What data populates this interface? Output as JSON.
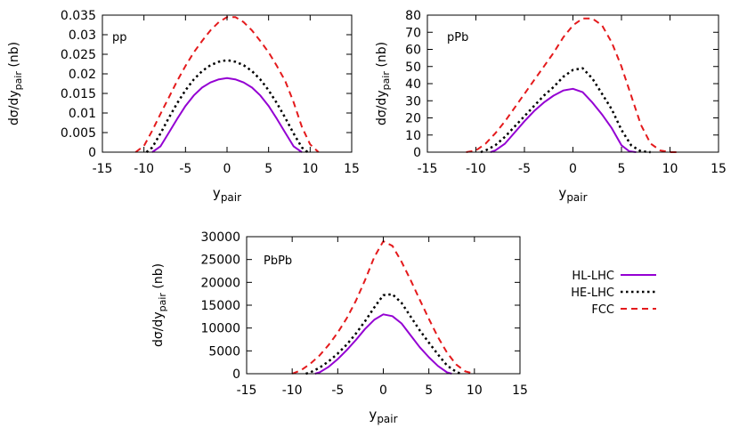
{
  "chart_data": [
    {
      "type": "line",
      "panel_label": "pp",
      "xlabel_main": "y",
      "xlabel_sub": "pair",
      "ylabel_pre": "dσ/dy",
      "ylabel_sub": "pair",
      "ylabel_post": " (nb)",
      "xlim": [
        -15,
        15
      ],
      "ylim": [
        0,
        0.035
      ],
      "xticks": [
        -15,
        -10,
        -5,
        0,
        5,
        10,
        15
      ],
      "xtick_labels": [
        "-15",
        "-10",
        "-5",
        "0",
        "5",
        "10",
        "15"
      ],
      "yticks": [
        0,
        0.005,
        0.01,
        0.015,
        0.02,
        0.025,
        0.03,
        0.035
      ],
      "ytick_labels": [
        "0",
        "0.005",
        "0.01",
        "0.015",
        "0.02",
        "0.025",
        "0.03",
        "0.035"
      ],
      "series": [
        {
          "name": "HL-LHC",
          "x": [
            -9.0,
            -8.0,
            -7.0,
            -6.0,
            -5.0,
            -4.0,
            -3.0,
            -2.0,
            -1.0,
            0.0,
            1.0,
            2.0,
            3.0,
            4.0,
            5.0,
            6.0,
            7.0,
            8.0,
            9.0
          ],
          "y": [
            0.0,
            0.0015,
            0.005,
            0.0085,
            0.0118,
            0.0145,
            0.0165,
            0.0178,
            0.0186,
            0.0189,
            0.0186,
            0.0178,
            0.0165,
            0.0145,
            0.0118,
            0.0085,
            0.005,
            0.0015,
            0.0
          ]
        },
        {
          "name": "HE-LHC",
          "x": [
            -9.7,
            -9.0,
            -8.0,
            -7.0,
            -6.0,
            -5.0,
            -4.0,
            -3.0,
            -2.0,
            -1.0,
            0.0,
            1.0,
            2.0,
            3.0,
            4.0,
            5.0,
            6.0,
            7.0,
            8.0,
            9.0,
            9.7
          ],
          "y": [
            0.0,
            0.0012,
            0.0048,
            0.0088,
            0.0125,
            0.0158,
            0.0186,
            0.0207,
            0.0222,
            0.0231,
            0.0235,
            0.0231,
            0.0222,
            0.0207,
            0.0186,
            0.0158,
            0.0125,
            0.0088,
            0.0048,
            0.0012,
            0.0
          ]
        },
        {
          "name": "FCC",
          "x": [
            -11.0,
            -10.0,
            -9.0,
            -8.0,
            -7.0,
            -6.0,
            -5.0,
            -4.0,
            -3.0,
            -2.0,
            -1.0,
            0.0,
            1.0,
            2.0,
            3.0,
            4.0,
            5.0,
            6.0,
            7.0,
            8.0,
            9.0,
            10.0,
            11.0
          ],
          "y": [
            0.0,
            0.0016,
            0.0055,
            0.0098,
            0.014,
            0.0182,
            0.022,
            0.0255,
            0.0284,
            0.0311,
            0.0332,
            0.0345,
            0.0345,
            0.0332,
            0.0311,
            0.0284,
            0.0255,
            0.022,
            0.0182,
            0.0128,
            0.0065,
            0.002,
            0.0
          ]
        }
      ]
    },
    {
      "type": "line",
      "panel_label": "pPb",
      "xlabel_main": "y",
      "xlabel_sub": "pair",
      "ylabel_pre": "dσ/dy",
      "ylabel_sub": "pair",
      "ylabel_post": " (nb)",
      "xlim": [
        -15,
        15
      ],
      "ylim": [
        0,
        80
      ],
      "xticks": [
        -15,
        -10,
        -5,
        0,
        5,
        10,
        15
      ],
      "xtick_labels": [
        "-15",
        "-10",
        "-5",
        "0",
        "5",
        "10",
        "15"
      ],
      "yticks": [
        0,
        10,
        20,
        30,
        40,
        50,
        60,
        70,
        80
      ],
      "ytick_labels": [
        "0",
        "10",
        "20",
        "30",
        "40",
        "50",
        "60",
        "70",
        "80"
      ],
      "series": [
        {
          "name": "HL-LHC",
          "x": [
            -8.5,
            -8.0,
            -7.0,
            -6.0,
            -5.0,
            -4.0,
            -3.0,
            -2.0,
            -1.0,
            0.0,
            1.0,
            2.0,
            3.0,
            4.0,
            5.0,
            5.8,
            6.5
          ],
          "y": [
            0.0,
            1.0,
            5.0,
            11.5,
            18.0,
            24.0,
            29.0,
            33.0,
            36.0,
            37.0,
            35.0,
            29.0,
            22.0,
            14.0,
            4.0,
            0.5,
            0.0
          ]
        },
        {
          "name": "HE-LHC",
          "x": [
            -9.5,
            -9.0,
            -8.0,
            -7.0,
            -6.0,
            -5.0,
            -4.0,
            -3.0,
            -2.0,
            -1.0,
            0.0,
            1.0,
            2.0,
            3.0,
            4.0,
            5.0,
            6.0,
            7.0,
            8.0
          ],
          "y": [
            0.0,
            1.0,
            4.0,
            9.0,
            15.0,
            21.0,
            27.0,
            33.0,
            38.0,
            44.0,
            48.0,
            49.0,
            43.0,
            34.0,
            25.0,
            13.0,
            4.0,
            0.5,
            0.0
          ]
        },
        {
          "name": "FCC",
          "x": [
            -11.0,
            -10.0,
            -9.0,
            -8.0,
            -7.0,
            -6.0,
            -5.0,
            -4.0,
            -3.0,
            -2.0,
            -1.0,
            0.0,
            1.0,
            2.0,
            3.0,
            4.0,
            5.0,
            6.0,
            7.0,
            8.0,
            9.0,
            10.0,
            11.0
          ],
          "y": [
            0.0,
            1.0,
            5.0,
            11.0,
            18.0,
            26.0,
            34.0,
            42.0,
            50.0,
            58.0,
            67.0,
            74.0,
            78.0,
            78.0,
            74.0,
            64.0,
            50.0,
            33.0,
            16.0,
            5.0,
            1.0,
            0.0,
            0.0
          ]
        }
      ]
    },
    {
      "type": "line",
      "panel_label": "PbPb",
      "xlabel_main": "y",
      "xlabel_sub": "pair",
      "ylabel_pre": "dσ/dy",
      "ylabel_sub": "pair",
      "ylabel_post": " (nb)",
      "xlim": [
        -15,
        15
      ],
      "ylim": [
        0,
        30000
      ],
      "xticks": [
        -15,
        -10,
        -5,
        0,
        5,
        10,
        15
      ],
      "xtick_labels": [
        "-15",
        "-10",
        "-5",
        "0",
        "5",
        "10",
        "15"
      ],
      "yticks": [
        0,
        5000,
        10000,
        15000,
        20000,
        25000,
        30000
      ],
      "ytick_labels": [
        "0",
        "5000",
        "10000",
        "15000",
        "20000",
        "25000",
        "30000"
      ],
      "series": [
        {
          "name": "HL-LHC",
          "x": [
            -7.5,
            -7.0,
            -6.0,
            -5.0,
            -4.0,
            -3.0,
            -2.0,
            -1.0,
            0.0,
            1.0,
            2.0,
            3.0,
            4.0,
            5.0,
            6.0,
            7.0,
            7.5
          ],
          "y": [
            0.0,
            300.0,
            1500.0,
            3200.0,
            5200.0,
            7400.0,
            9800.0,
            11800.0,
            13000.0,
            12600.0,
            11000.0,
            8400.0,
            5800.0,
            3600.0,
            1700.0,
            300.0,
            0.0
          ]
        },
        {
          "name": "HE-LHC",
          "x": [
            -8.5,
            -8.0,
            -7.0,
            -6.0,
            -5.0,
            -4.0,
            -3.0,
            -2.0,
            -1.0,
            0.0,
            1.0,
            2.0,
            3.0,
            4.0,
            5.0,
            6.0,
            7.0,
            8.0,
            8.5
          ],
          "y": [
            0.0,
            300.0,
            1300.0,
            2700.0,
            4400.0,
            6400.0,
            8800.0,
            11500.0,
            14500.0,
            17200.0,
            17400.0,
            15500.0,
            12500.0,
            9500.0,
            6800.0,
            4200.0,
            1800.0,
            400.0,
            0.0
          ]
        },
        {
          "name": "FCC",
          "x": [
            -10.0,
            -9.0,
            -8.0,
            -7.0,
            -6.0,
            -5.0,
            -4.0,
            -3.0,
            -2.0,
            -1.0,
            0.0,
            1.0,
            2.0,
            3.0,
            4.0,
            5.0,
            6.0,
            7.0,
            8.0,
            9.0,
            10.0
          ],
          "y": [
            0.0,
            800.0,
            2200.0,
            4000.0,
            6300.0,
            9000.0,
            12200.0,
            16000.0,
            20500.0,
            25500.0,
            29000.0,
            28000.0,
            24500.0,
            20500.0,
            16200.0,
            12000.0,
            8000.0,
            4600.0,
            2000.0,
            500.0,
            0.0
          ]
        }
      ]
    }
  ],
  "legend": {
    "items": [
      {
        "name": "HL-LHC",
        "color": "#9400d3",
        "style": "solid"
      },
      {
        "name": "HE-LHC",
        "color": "#000000",
        "style": "dotted"
      },
      {
        "name": "FCC",
        "color": "#e41a1c",
        "style": "dashed"
      }
    ]
  },
  "colors": {
    "HL-LHC": "#9400d3",
    "HE-LHC": "#000000",
    "FCC": "#e41a1c"
  }
}
